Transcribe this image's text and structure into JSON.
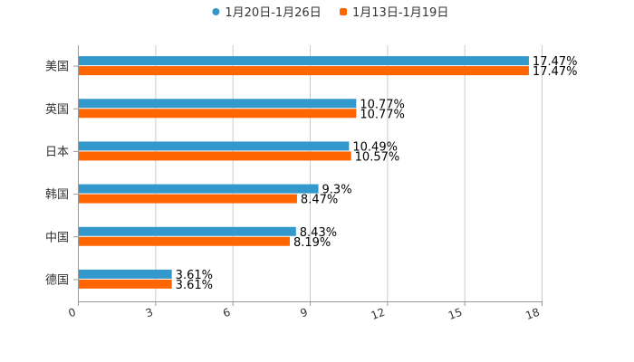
{
  "chart_data": {
    "type": "bar",
    "orientation": "horizontal",
    "categories": [
      "美国",
      "英国",
      "日本",
      "韩国",
      "中国",
      "德国"
    ],
    "series": [
      {
        "name": "1月20日-1月26日",
        "color": "#3399CC",
        "values": [
          17.47,
          10.77,
          10.49,
          9.3,
          8.43,
          3.61
        ],
        "labels": [
          "17.47%",
          "10.77%",
          "10.49%",
          "9.3%",
          "8.43%",
          "3.61%"
        ]
      },
      {
        "name": "1月13日-1月19日",
        "color": "#FF6600",
        "values": [
          17.47,
          10.77,
          10.57,
          8.47,
          8.19,
          3.61
        ],
        "labels": [
          "17.47%",
          "10.77%",
          "10.57%",
          "8.47%",
          "8.19%",
          "3.61%"
        ]
      }
    ],
    "xticks": [
      "0",
      "3",
      "6",
      "9",
      "12",
      "15",
      "18"
    ],
    "xlim": [
      0,
      18
    ],
    "legend_position": "top-center",
    "grid": true
  }
}
